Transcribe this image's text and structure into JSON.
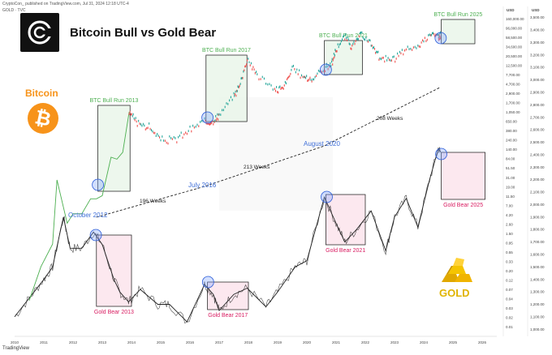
{
  "header": {
    "publisher": "CryptoCon_ published on TradingView.com, Jul 31, 2024 12:18 UTC-4",
    "symbol": "GOLD · TVC",
    "branding": "TradingView"
  },
  "title": "Bitcoin Bull vs Gold Bear",
  "labels": {
    "bitcoin": "Bitcoin",
    "gold": "GOLD"
  },
  "icons": {
    "logo": "cryptocon-logo-icon",
    "bitcoin": "bitcoin-coin-icon",
    "gold": "gold-bars-icon"
  },
  "colors": {
    "btc_line": "#4caf50",
    "btc_candle_up": "#26a69a",
    "btc_candle_down": "#ef5350",
    "gold_line": "#222222",
    "bull_box": "#e8f5e9",
    "bear_box": "#fce4ec",
    "bull_text": "#4caf50",
    "bear_text": "#d81b60",
    "date_text": "#3f6fd8",
    "bitcoin_orange": "#f7931a",
    "gold_yellow": "#e0b400"
  },
  "chart_data": {
    "type": "line",
    "title": "Bitcoin Bull vs Gold Bear",
    "x_axis": {
      "ticks": [
        "2010",
        "2011",
        "2012",
        "2013",
        "2014",
        "2015",
        "2016",
        "2017",
        "2018",
        "2019",
        "2020",
        "2021",
        "2022",
        "2023",
        "2024",
        "2025",
        "2026"
      ],
      "range": [
        2010,
        2026.5
      ]
    },
    "y_axes": [
      {
        "name": "USD",
        "scale": "log",
        "ticks": [
          "160,000.00",
          "96,000.00",
          "58,500.00",
          "34,600.00",
          "20,500.00",
          "12,500.00",
          "7,700.00",
          "4,700.00",
          "2,900.00",
          "1,700.00",
          "1,050.00",
          "650.00",
          "380.00",
          "240.00",
          "140.00",
          "84.00",
          "51.50",
          "31.00",
          "19.00",
          "11.50",
          "7.00",
          "4.20",
          "2.60",
          "1.50",
          "0.95",
          "0.55",
          "0.33",
          "0.20",
          "0.12",
          "0.07",
          "0.04",
          "0.03",
          "0.02",
          "0.01"
        ]
      },
      {
        "name": "USD",
        "scale": "linear",
        "ticks": [
          "3,500.00",
          "3,400.00",
          "3,300.00",
          "3,200.00",
          "3,100.00",
          "3,000.00",
          "2,900.00",
          "2,800.00",
          "2,700.00",
          "2,600.00",
          "2,500.00",
          "2,400.00",
          "2,300.00",
          "2,200.00",
          "2,100.00",
          "2,000.00",
          "1,900.00",
          "1,800.00",
          "1,700.00",
          "1,600.00",
          "1,500.00",
          "1,400.00",
          "1,300.00",
          "1,200.00",
          "1,100.00",
          "1,000.00"
        ]
      }
    ],
    "series": [
      {
        "name": "Bitcoin",
        "axis": "log",
        "x": [
          2010.5,
          2010.9,
          2011.3,
          2011.45,
          2011.8,
          2012.0,
          2012.3,
          2012.6,
          2012.8,
          2013.0,
          2013.3,
          2013.5,
          2013.7,
          2013.92,
          2014.2,
          2014.6,
          2015.0,
          2015.5,
          2016.0,
          2016.5,
          2016.8,
          2017.0,
          2017.5,
          2017.7,
          2017.96,
          2018.3,
          2018.9,
          2019.2,
          2019.5,
          2019.9,
          2020.2,
          2020.6,
          2020.85,
          2021.0,
          2021.3,
          2021.55,
          2021.85,
          2022.2,
          2022.5,
          2022.9,
          2023.3,
          2023.8,
          2024.2,
          2024.5,
          2024.58
        ],
        "values": [
          0.05,
          0.3,
          1,
          30,
          3,
          5,
          5,
          11,
          11,
          13,
          100,
          90,
          130,
          1100,
          600,
          500,
          250,
          250,
          430,
          650,
          700,
          900,
          2500,
          4500,
          19000,
          8000,
          3500,
          4000,
          11000,
          7200,
          6000,
          11000,
          14000,
          30000,
          60000,
          35000,
          65000,
          40000,
          20000,
          16000,
          28000,
          35000,
          70000,
          60000,
          67000
        ]
      },
      {
        "name": "Gold",
        "axis": "linear",
        "x": [
          2010.0,
          2010.5,
          2011.0,
          2011.3,
          2011.67,
          2011.9,
          2012.3,
          2012.7,
          2013.0,
          2013.4,
          2013.6,
          2013.9,
          2014.3,
          2014.9,
          2015.3,
          2015.9,
          2016.5,
          2016.8,
          2017.0,
          2017.5,
          2017.96,
          2018.6,
          2019.0,
          2019.6,
          2020.0,
          2020.6,
          2021.0,
          2021.3,
          2021.7,
          2022.2,
          2022.7,
          2023.0,
          2023.4,
          2023.8,
          2024.2,
          2024.5,
          2024.58
        ],
        "values": [
          1100,
          1250,
          1400,
          1500,
          1900,
          1650,
          1650,
          1780,
          1680,
          1400,
          1300,
          1220,
          1320,
          1200,
          1200,
          1060,
          1360,
          1280,
          1150,
          1280,
          1330,
          1180,
          1300,
          1500,
          1550,
          2060,
          1850,
          1700,
          1800,
          1950,
          1630,
          1900,
          2050,
          1820,
          2200,
          2450,
          2420
        ]
      }
    ],
    "annotations": {
      "bull_runs": [
        {
          "label": "BTC Bull Run 2013",
          "start": 2012.85,
          "end": 2013.95
        },
        {
          "label": "BTC Bull Run 2017",
          "start": 2016.55,
          "end": 2017.95
        },
        {
          "label": "BTC Bull Run 2021",
          "start": 2020.6,
          "end": 2021.9
        },
        {
          "label": "BTC Bull Run 2025",
          "start": 2024.6,
          "end": 2025.75
        }
      ],
      "bear_markets": [
        {
          "label": "Gold Bear 2013",
          "start": 2012.8,
          "end": 2014.0
        },
        {
          "label": "Gold Bear 2017",
          "start": 2016.6,
          "end": 2018.0
        },
        {
          "label": "Gold Bear 2021",
          "start": 2020.65,
          "end": 2022.0
        },
        {
          "label": "Gold Bear 2025",
          "start": 2024.6,
          "end": 2026.1
        }
      ],
      "halving_dates": [
        "October 2012",
        "July 2016",
        "August 2020"
      ],
      "intervals": [
        "196 Weeks",
        "213 Weeks",
        "208 Weeks"
      ]
    }
  }
}
